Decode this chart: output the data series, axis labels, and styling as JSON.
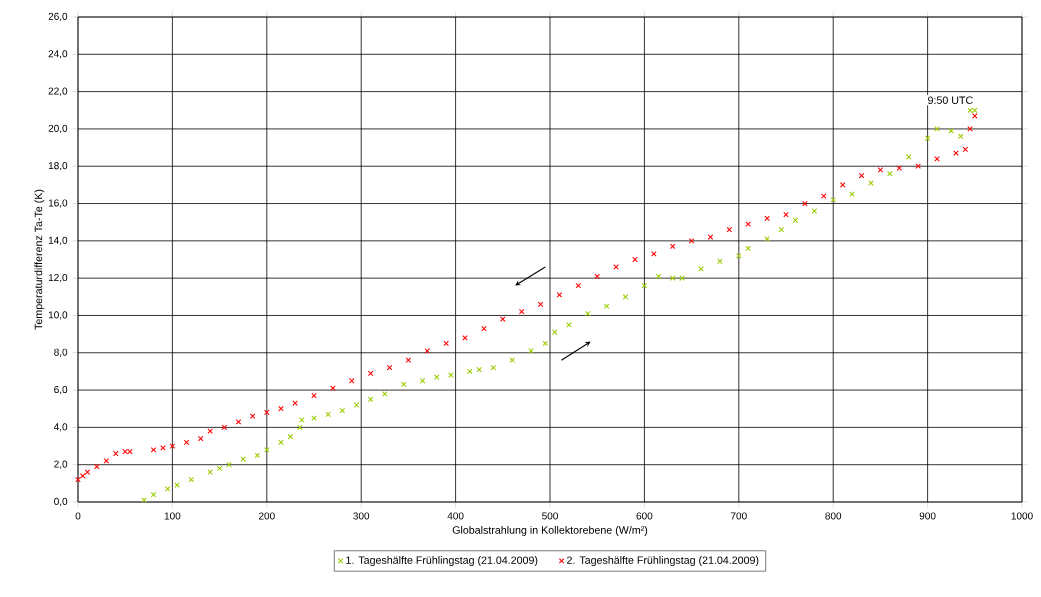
{
  "chart_data": {
    "type": "scatter",
    "xlabel": "Globalstrahlung in Kollektorebene (W/m²)",
    "ylabel": "Temperaturdifferenz Ta-Te  (K)",
    "xlim": [
      0,
      1000
    ],
    "xticks": [
      0,
      100,
      200,
      300,
      400,
      500,
      600,
      700,
      800,
      900,
      1000
    ],
    "ylim": [
      0,
      26
    ],
    "yticks": [
      {
        "value": 0,
        "label": "0,0"
      },
      {
        "value": 2,
        "label": "2,0"
      },
      {
        "value": 4,
        "label": "4,0"
      },
      {
        "value": 6,
        "label": "6,0"
      },
      {
        "value": 8,
        "label": "8,0"
      },
      {
        "value": 10,
        "label": "10,0"
      },
      {
        "value": 12,
        "label": "12,0"
      },
      {
        "value": 14,
        "label": "14,0"
      },
      {
        "value": 16,
        "label": "16,0"
      },
      {
        "value": 18,
        "label": "18,0"
      },
      {
        "value": 20,
        "label": "20,0"
      },
      {
        "value": 22,
        "label": "22,0"
      },
      {
        "value": 24,
        "label": "24,0"
      },
      {
        "value": 26,
        "label": "26,0"
      }
    ],
    "grid": true,
    "legend": "bottom",
    "marker": "cross",
    "annotations": [
      {
        "text": "9:50  UTC",
        "x": 950,
        "y": 21
      }
    ],
    "series": [
      {
        "name": "1. Tageshälfte Frühlingstag (21.04.2009)",
        "color": "#99cc00",
        "x": [
          70,
          80,
          95,
          105,
          120,
          140,
          150,
          160,
          175,
          190,
          200,
          215,
          225,
          235,
          237,
          250,
          265,
          280,
          295,
          310,
          325,
          345,
          365,
          380,
          395,
          415,
          425,
          440,
          460,
          480,
          495,
          505,
          520,
          540,
          560,
          580,
          600,
          615,
          630,
          640,
          660,
          680,
          700,
          710,
          730,
          745,
          760,
          780,
          800,
          820,
          840,
          860,
          880,
          900,
          910,
          925,
          935,
          945,
          950
        ],
        "values": [
          0.1,
          0.4,
          0.7,
          0.9,
          1.2,
          1.6,
          1.8,
          2.0,
          2.3,
          2.5,
          2.8,
          3.2,
          3.5,
          4.0,
          4.4,
          4.5,
          4.7,
          4.9,
          5.2,
          5.5,
          5.8,
          6.3,
          6.5,
          6.7,
          6.8,
          7.0,
          7.1,
          7.2,
          7.6,
          8.1,
          8.5,
          9.1,
          9.5,
          10.1,
          10.5,
          11.0,
          11.6,
          12.1,
          12.0,
          12.0,
          12.5,
          12.9,
          13.2,
          13.6,
          14.1,
          14.6,
          15.1,
          15.6,
          16.2,
          16.5,
          17.1,
          17.6,
          18.5,
          19.5,
          20.0,
          19.9,
          19.6,
          21.0,
          21.0
        ]
      },
      {
        "name": "2. Tageshälfte Frühlingstag (21.04.2009)",
        "color": "#ff0000",
        "x": [
          0,
          5,
          10,
          20,
          30,
          40,
          50,
          55,
          80,
          90,
          100,
          115,
          130,
          140,
          155,
          170,
          185,
          200,
          215,
          230,
          250,
          270,
          290,
          310,
          330,
          350,
          370,
          390,
          410,
          430,
          450,
          470,
          490,
          510,
          530,
          550,
          570,
          590,
          610,
          630,
          650,
          670,
          690,
          710,
          730,
          750,
          770,
          790,
          810,
          830,
          850,
          870,
          890,
          910,
          930,
          940,
          945,
          950
        ],
        "values": [
          1.2,
          1.4,
          1.6,
          1.9,
          2.2,
          2.6,
          2.7,
          2.7,
          2.8,
          2.9,
          3.0,
          3.2,
          3.4,
          3.8,
          4.0,
          4.3,
          4.6,
          4.8,
          5.0,
          5.3,
          5.7,
          6.1,
          6.5,
          6.9,
          7.2,
          7.6,
          8.1,
          8.5,
          8.8,
          9.3,
          9.8,
          10.2,
          10.6,
          11.1,
          11.6,
          12.1,
          12.6,
          13.0,
          13.3,
          13.7,
          14.0,
          14.2,
          14.6,
          14.9,
          15.2,
          15.4,
          16.0,
          16.4,
          17.0,
          17.5,
          17.8,
          17.9,
          18.0,
          18.4,
          18.7,
          18.9,
          20.0,
          20.7
        ]
      }
    ]
  }
}
